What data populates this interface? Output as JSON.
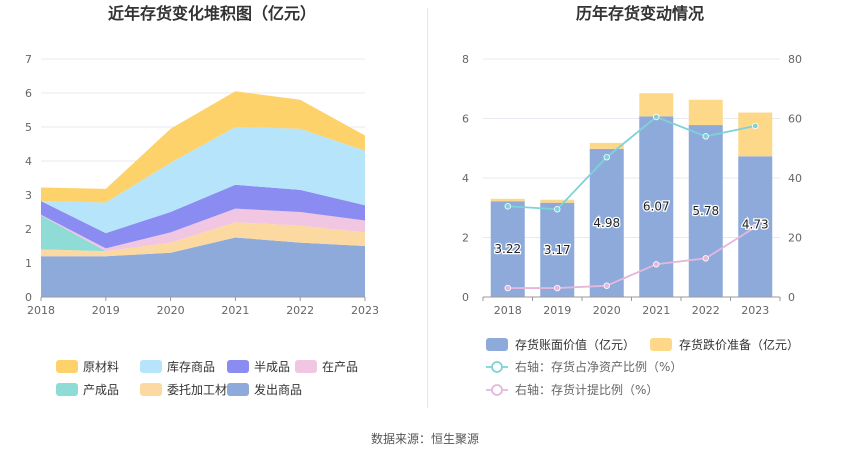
{
  "footer": {
    "label": "数据来源：",
    "source": "恒生聚源"
  },
  "chart_data": [
    {
      "type": "area",
      "stacked": true,
      "title": "近年存货变化堆积图（亿元）",
      "x": [
        "2018",
        "2019",
        "2020",
        "2021",
        "2022",
        "2023"
      ],
      "ylim": [
        0,
        7
      ],
      "yticks": [
        0,
        1,
        2,
        3,
        4,
        5,
        6,
        7
      ],
      "grid": true,
      "legend_position": "bottom",
      "series": [
        {
          "name": "发出商品",
          "color": "#8eaadb",
          "values": [
            1.2,
            1.2,
            1.3,
            1.75,
            1.6,
            1.5
          ]
        },
        {
          "name": "委托加工材料",
          "color": "#fcd9a1",
          "values": [
            0.2,
            0.15,
            0.3,
            0.45,
            0.5,
            0.4
          ]
        },
        {
          "name": "产成品",
          "color": "#8fdcd6",
          "values": [
            1.0,
            0.0,
            0.0,
            0.0,
            0.0,
            0.0
          ]
        },
        {
          "name": "在产品",
          "color": "#f0c6e2",
          "values": [
            0.02,
            0.08,
            0.3,
            0.4,
            0.4,
            0.35
          ]
        },
        {
          "name": "半成品",
          "color": "#8b8cf2",
          "values": [
            0.4,
            0.45,
            0.6,
            0.7,
            0.65,
            0.45
          ]
        },
        {
          "name": "库存商品",
          "color": "#b6e4fb",
          "values": [
            0.0,
            0.9,
            1.45,
            1.7,
            1.8,
            1.6
          ]
        },
        {
          "name": "原材料",
          "color": "#fdd26b",
          "values": [
            0.4,
            0.4,
            1.0,
            1.05,
            0.85,
            0.45
          ]
        }
      ],
      "legend_order": [
        "原材料",
        "库存商品",
        "半成品",
        "在产品",
        "产成品",
        "委托加工材料",
        "发出商品"
      ]
    },
    {
      "type": "bar",
      "title": "历年存货变动情况",
      "categories": [
        "2018",
        "2019",
        "2020",
        "2021",
        "2022",
        "2023"
      ],
      "ylim": [
        0,
        8
      ],
      "yticks": [
        0,
        2,
        4,
        6,
        8
      ],
      "y2lim": [
        0,
        80
      ],
      "y2ticks": [
        0,
        20,
        40,
        60,
        80
      ],
      "grid": true,
      "legend_position": "bottom",
      "series": [
        {
          "name": "存货账面价值（亿元）",
          "kind": "bar",
          "color": "#8eaadb",
          "values": [
            3.22,
            3.17,
            4.98,
            6.07,
            5.78,
            4.73
          ],
          "labels": [
            "3.22",
            "3.17",
            "4.98",
            "6.07",
            "5.78",
            "4.73"
          ]
        },
        {
          "name": "存货跌价准备（亿元）",
          "kind": "bar",
          "stacked": true,
          "color": "#fdd889",
          "values": [
            0.08,
            0.1,
            0.2,
            0.78,
            0.85,
            1.47
          ]
        },
        {
          "name": "右轴：存货占净资产比例（%）",
          "kind": "line",
          "axis": "right",
          "color": "#7dd3d8",
          "values": [
            30.5,
            29.5,
            47,
            60.5,
            54,
            57.5
          ]
        },
        {
          "name": "右轴：存货计提比例（%）",
          "kind": "line",
          "axis": "right",
          "color": "#e3b8dc",
          "values": [
            3,
            3,
            3.8,
            11,
            13,
            23.5
          ]
        }
      ]
    }
  ]
}
